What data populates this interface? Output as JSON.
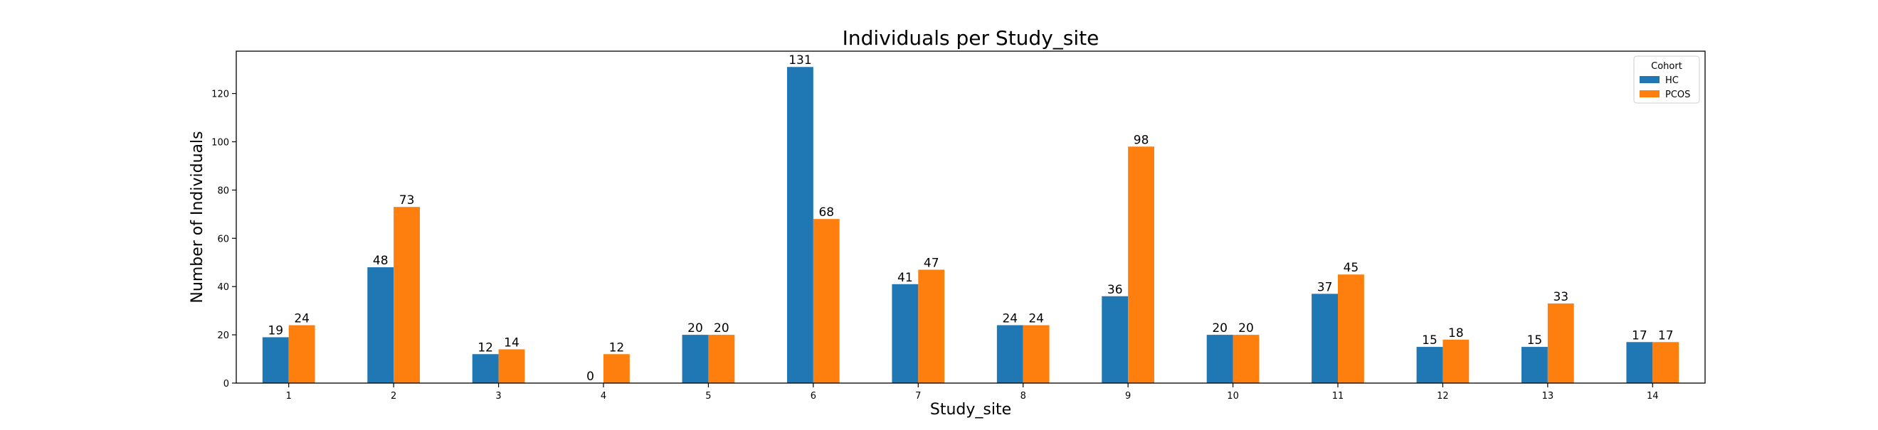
{
  "chart_data": {
    "type": "bar",
    "title": "Individuals per Study_site",
    "xlabel": "Study_site",
    "ylabel": "Number of Individuals",
    "categories": [
      "1",
      "2",
      "3",
      "4",
      "5",
      "6",
      "7",
      "8",
      "9",
      "10",
      "11",
      "12",
      "13",
      "14"
    ],
    "series": [
      {
        "name": "HC",
        "color": "#1f77b4",
        "values": [
          19,
          48,
          12,
          0,
          20,
          131,
          41,
          24,
          36,
          20,
          37,
          15,
          15,
          17
        ]
      },
      {
        "name": "PCOS",
        "color": "#ff7f0e",
        "values": [
          24,
          73,
          14,
          12,
          20,
          68,
          47,
          24,
          98,
          20,
          45,
          18,
          33,
          17
        ]
      }
    ],
    "ylim": [
      0,
      137.55
    ],
    "yticks": [
      0,
      20,
      40,
      60,
      80,
      100,
      120
    ],
    "legend": {
      "title": "Cohort",
      "placement": "top-right"
    },
    "grid": false
  }
}
